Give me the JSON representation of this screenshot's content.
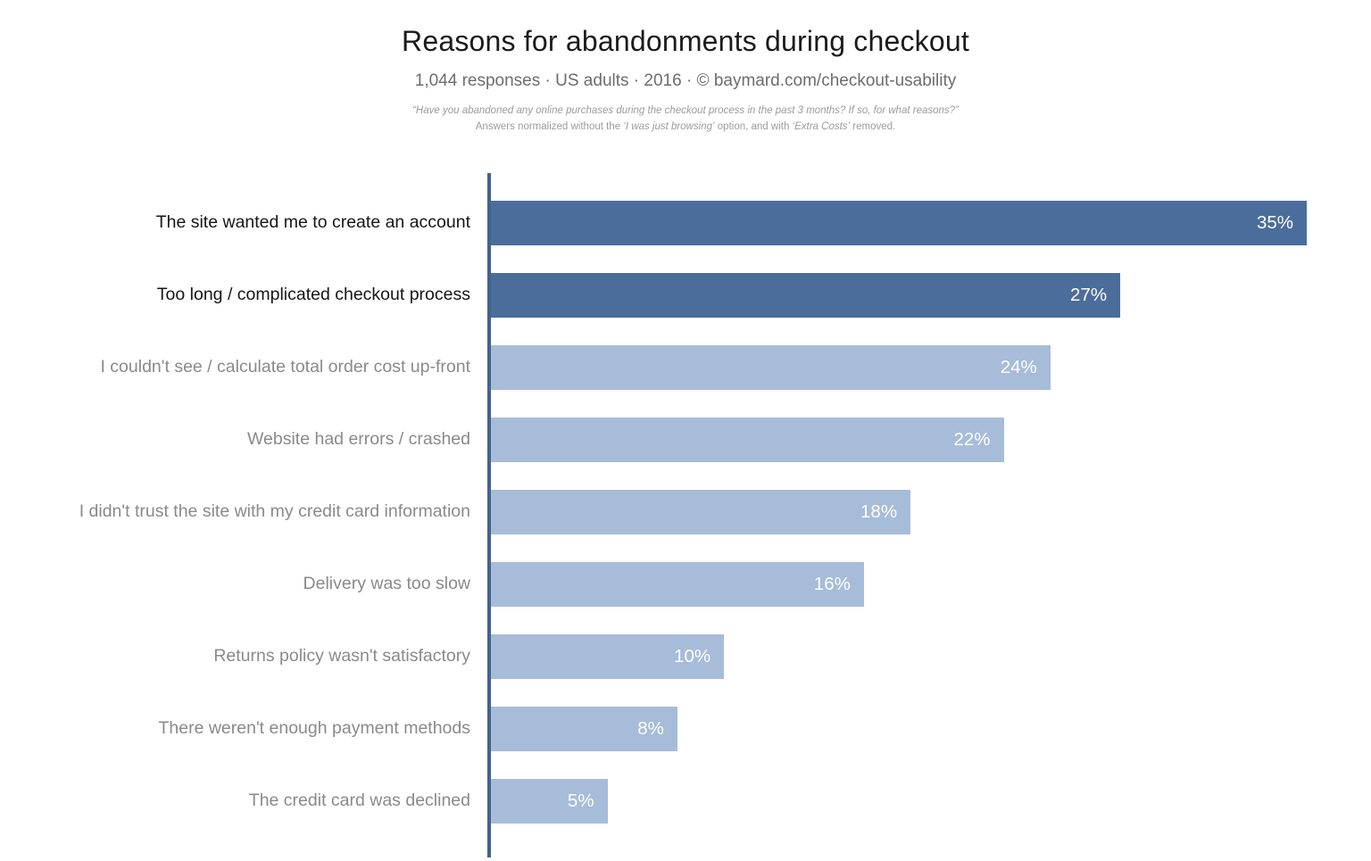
{
  "header": {
    "title": "Reasons for abandonments during checkout",
    "subtitle": "1,044 responses · US adults · 2016 · © baymard.com/checkout-usability",
    "footnote_question": "“Have you abandoned any online purchases during the checkout process in the past 3 months? If so, for what reasons?”",
    "footnote_note_parts": {
      "0": "Answers normalized without the ",
      "1": "‘I was just browsing’",
      "2": " option, and with ",
      "3": "‘Extra Costs’",
      "4": " removed."
    }
  },
  "chart_data": {
    "type": "bar",
    "orientation": "horizontal",
    "title": "Reasons for abandonments during checkout",
    "categories": [
      "The site wanted me to create an account",
      "Too long / complicated checkout process",
      "I couldn't see / calculate total order cost up-front",
      "Website had errors / crashed",
      "I didn't trust the site with my credit card information",
      "Delivery was too slow",
      "Returns policy wasn't satisfactory",
      "There weren't enough payment methods",
      "The credit card was declined"
    ],
    "values": [
      35,
      27,
      24,
      22,
      18,
      16,
      10,
      8,
      5
    ],
    "value_labels": [
      "35%",
      "27%",
      "24%",
      "22%",
      "18%",
      "16%",
      "10%",
      "8%",
      "5%"
    ],
    "emphasized": [
      true,
      true,
      false,
      false,
      false,
      false,
      false,
      false,
      false
    ],
    "xlim": [
      0,
      35
    ],
    "grid": false,
    "legend": false,
    "colors": {
      "bar_emphasis": "#4a6d9b",
      "bar_default": "#a7bcd9",
      "axis": "#44628c",
      "value_text": "#ffffff",
      "label_default": "#8a8a8a",
      "label_emphasis": "#161616"
    }
  }
}
